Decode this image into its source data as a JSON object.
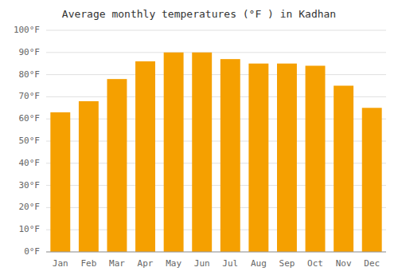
{
  "chart_data": {
    "type": "bar",
    "title": "Average monthly temperatures (°F ) in Kadhan",
    "categories": [
      "Jan",
      "Feb",
      "Mar",
      "Apr",
      "May",
      "Jun",
      "Jul",
      "Aug",
      "Sep",
      "Oct",
      "Nov",
      "Dec"
    ],
    "values": [
      63,
      68,
      78,
      86,
      90,
      90,
      87,
      85,
      85,
      84,
      75,
      65
    ],
    "color": "#F5A000",
    "ylim": [
      0,
      100
    ],
    "yticks": [
      {
        "value": 0,
        "label": "0°F"
      },
      {
        "value": 10,
        "label": "10°F"
      },
      {
        "value": 20,
        "label": "20°F"
      },
      {
        "value": 30,
        "label": "30°F"
      },
      {
        "value": 40,
        "label": "40°F"
      },
      {
        "value": 50,
        "label": "50°F"
      },
      {
        "value": 60,
        "label": "60°F"
      },
      {
        "value": 70,
        "label": "70°F"
      },
      {
        "value": 80,
        "label": "80°F"
      },
      {
        "value": 90,
        "label": "90°F"
      },
      {
        "value": 100,
        "label": "100°F"
      }
    ],
    "grid": true
  }
}
